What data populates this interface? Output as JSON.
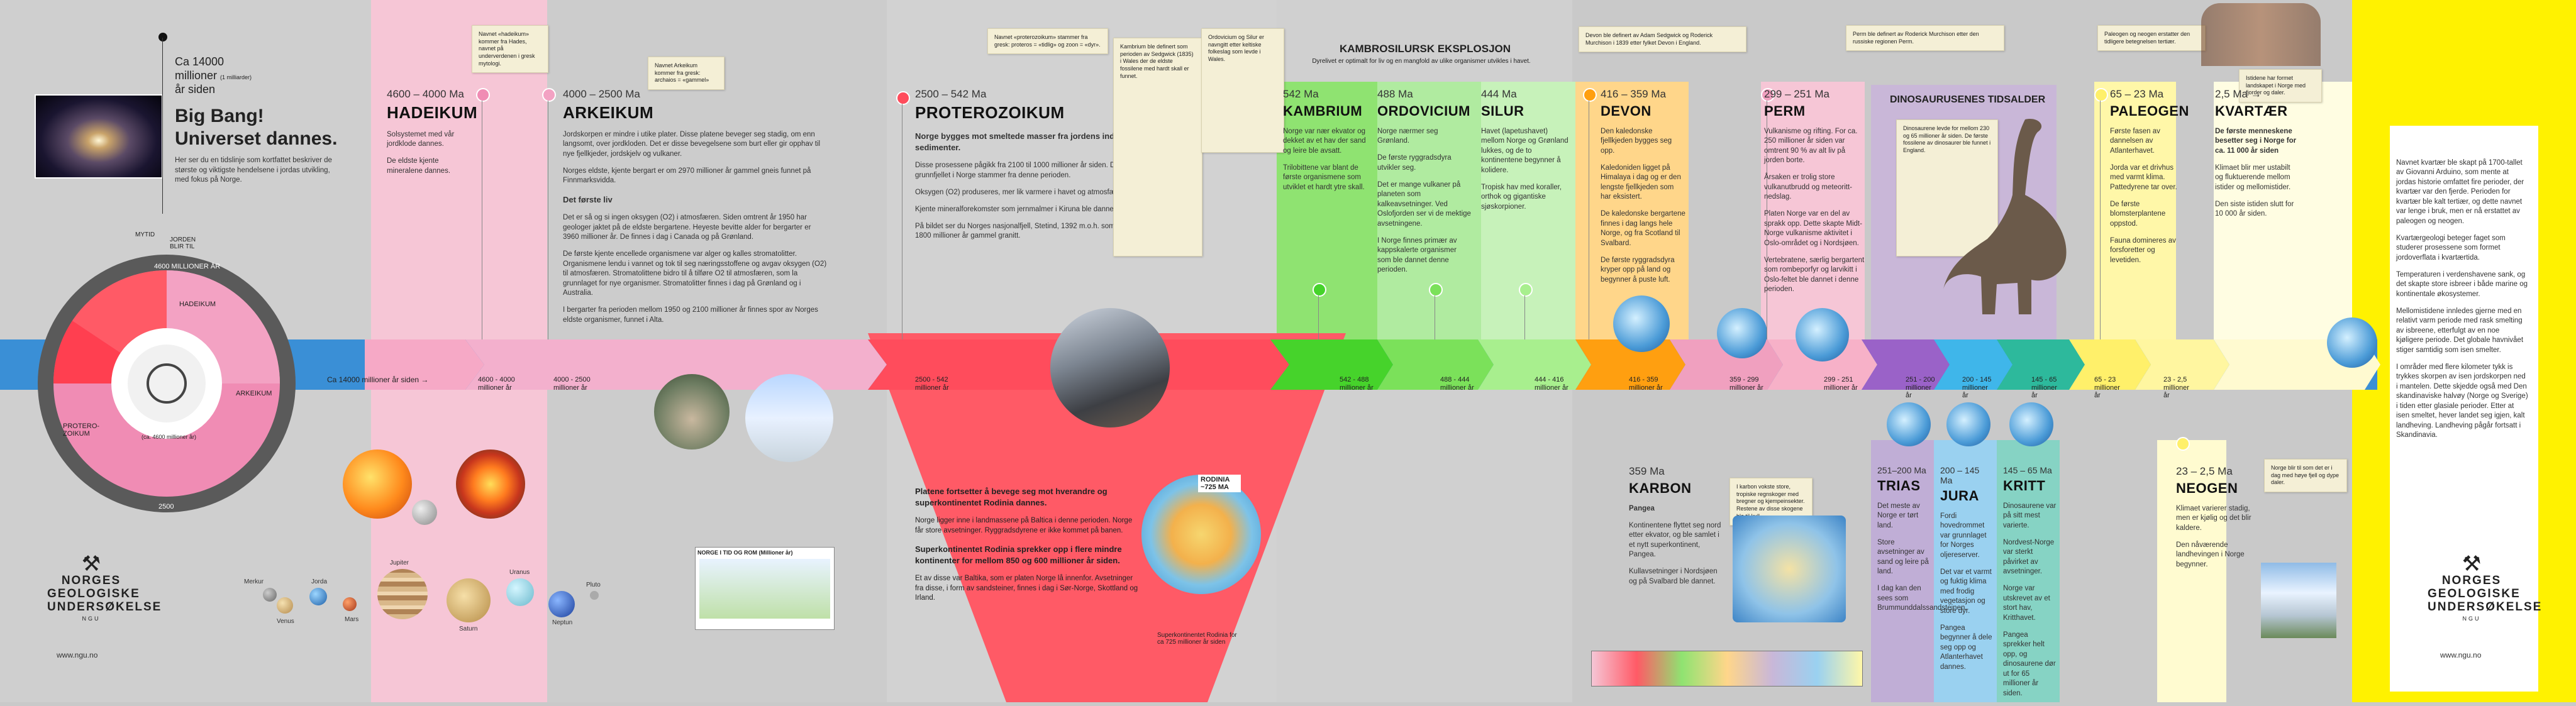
{
  "intro": {
    "ca": "Ca 14000",
    "millioner": "millioner",
    "millioner_note": "(1 milliarder)",
    "ar_siden": "år siden",
    "bigbang": "Big Bang!",
    "universet": "Universet dannes.",
    "desc": "Her ser du en tidslinje som kortfattet beskriver de største og viktigste hendelsene i jordas utvikling, med fokus på Norge.",
    "earth_label": "JORDEN BLIR TIL",
    "mytid": "MYTID"
  },
  "clock": {
    "hadeikum": "HADEIKUM",
    "arkeikum": "ARKEIKUM",
    "proterozoikum": "PROTERO-ZOIKUM",
    "top": "4600 MILLIONER ÅR",
    "bottom": "2500",
    "center": "(ca. 4600 millioner år)"
  },
  "hadeikum": {
    "ma": "4600 – 4000 Ma",
    "title": "HADEIKUM",
    "t1": "Solsystemet med vår jordklode dannes.",
    "t2": "De eldste kjente mineralene dannes.",
    "arrow": "4600 - 4000 millioner år",
    "note": "Navnet «hadeikum» kommer fra Hades, navnet på underverdenen i gresk mytologi."
  },
  "arkeikum": {
    "ma": "4000 – 2500 Ma",
    "title": "ARKEIKUM",
    "t1": "Jordskorpen er mindre i utike plater. Disse platene beveger seg stadig, om enn langsomt, over jordkloden. Det er disse bevegelsene som burt eller gir opphav til nye fjellkjeder, jordskjelv og vulkaner.",
    "t2": "Norges eldste, kjente bergart er om 2970 millioner år gammel gneis funnet på Finnmarksvidda.",
    "sub": "Det første liv",
    "t3": "Det er så og si ingen oksygen (O2) i atmosfæren. Siden omtrent år 1950 har geologer jaktet på de eldste bergartene. Heyeste bevitte alder for bergarter er 3960 millioner år. De finnes i dag i Canada og på Grønland.",
    "t4": "De første kjente encellede organismene var alger og kalles stromatolitter. Organismene lendu i vannet og tok til seg næringsstoffene og avgav oksygen (O2) til atmosfæren. Stromatolittene bidro til å tilføre O2 til atmosfæren, som la grunnlaget for nye organismer. Stromatolitter finnes i dag på Grønland og i Australia.",
    "t5": "I bergarter fra perioden mellom 1950 og 2100 millioner år finnes spor av Norges eldste organismer, funnet i Alta.",
    "arrow": "4000 - 2500 millioner år",
    "note": "Navnet Arkeikum kommer fra gresk: archaios = «gammel»"
  },
  "proterozoikum": {
    "ma": "2500 – 542 Ma",
    "title": "PROTEROZOIKUM",
    "sub": "Norge bygges mot smeltede masser fra jordens indre og sedimenter.",
    "t1": "Disse prosessene pågikk fra 2100 til 1000 millioner år siden. Det meste av grunnfjellet i Norge stammer fra denne perioden.",
    "t2": "Oksygen (O2) produseres, mer lik varmere i havet og atmosfæren.",
    "t3": "Kjente mineralforekomster som jernmalmer i Kiruna ble dannet.",
    "t4": "På bildet ser du Norges nasjonalfjell, Stetind, 1392 m.o.h. som består av ca. 1800 millioner år gammel granitt.",
    "arrow": "2500 - 542 millioner år",
    "note": "Navnet «proterozoikum» stammer fra gresk: proteros = «tidlig» og zoon = «dyr».",
    "lower_title": "Platene fortsetter å bevege seg mot hverandre og superkontinentet Rodinia dannes.",
    "lower_t1": "Norge ligger inne i landmassene på Baltica i denne perioden. Norge får store avsetninger. Ryggradsdyrene er ikke kommet på banen.",
    "lower_title2": "Superkontinentet Rodinia sprekker opp i flere mindre kontinenter for mellom 850 og 600 millioner år siden.",
    "lower_t2": "Et av disse var Baltika, som er platen Norge lå innenfor. Avsetninger fra disse, i form av sandsteiner, finnes i dag i Sør-Norge, Skottland og Irland.",
    "rodinia": "RODINIA ~725 MA",
    "rodinia_cap": "Superkontinentet Rodinia for ca 725 millioner år siden",
    "map_title": "NORGE I TID OG ROM (Millioner år)"
  },
  "kambro": {
    "title": "KAMBROSILURSK EKSPLOSJON",
    "sub": "Dyrelivet er optimalt for liv og en mangfold av ulike organismer utvikles i havet.",
    "left_note": "Kambrium ble definert som perioden av Sedgwick (1835) i Wales der de eldste fossilene med hardt skall er funnet.",
    "right_note": "Ordovicium og Silur er navngitt etter keltiske folkeslag som levde i Wales."
  },
  "kambrium": {
    "ma": "542 Ma",
    "title": "KAMBRIUM",
    "t1": "Norge var nær ekvator og dekket av et hav der sand og leire ble avsatt.",
    "t2": "Trilobittene var blant de første organismene som utviklet et hardt ytre skall.",
    "arrow": "542 - 488 millioner år"
  },
  "ordovicium": {
    "ma": "488 Ma",
    "title": "ORDOVICIUM",
    "t1": "Norge nærmer seg Grønland.",
    "t2": "De første ryggradsdyra utvikler seg.",
    "t3": "Det er mange vulkaner på planeten som kalkeavsetninger. Ved Oslofjorden ser vi de mektige avsetningene.",
    "t4": "I Norge finnes primær av kappskalerte organismer som ble dannet denne perioden.",
    "arrow": "488 - 444 millioner år"
  },
  "silur": {
    "ma": "444 Ma",
    "title": "SILUR",
    "t1": "Havet (lapetushavet) mellom Norge og Grønland lukkes, og de to kontinentene begynner å kolidere.",
    "t2": "Tropisk hav med koraller, orthok og gigantiske sjøskorpioner.",
    "arrow": "444 - 416 millioner år"
  },
  "devon": {
    "ma": "416 – 359 Ma",
    "title": "DEVON",
    "t1": "Den kaledonske fjellkjeden bygges seg opp.",
    "t2": "Kaledoniden ligget på Himalaya i dag og er den lengste fjellkjeden som har eksistert.",
    "t3": "De kaledonske bergartene finnes i dag langs hele Norge, og fra Scotland til Svalbard.",
    "t4": "De første ryggradsdyra kryper opp på land og begynner å puste luft.",
    "arrow": "416 - 359 millioner år",
    "note": "Devon ble definert av Adam Sedgwick og Roderick Murchison i 1839 etter fylket Devon i England."
  },
  "karbon": {
    "ma": "359 Ma",
    "title": "KARBON",
    "sub": "Pangea",
    "t1": "Kontinentene flyttet seg nord etter ekvator, og ble samlet i et nytt superkontinent, Pangea.",
    "t2": "Kullavsetninger i Nordsjøen og på Svalbard ble dannet.",
    "arrow": "359 - 299 millioner år",
    "note": "I karbon vokste store, tropiske regnskoger med bregner og kjempeinsekter. Restene av disse skogene ble til kull."
  },
  "perm": {
    "ma": "299 – 251 Ma",
    "title": "PERM",
    "t1": "Vulkanisme og rifting. For ca. 250 millioner år siden var omtrent 90 % av alt liv på jorden borte.",
    "t2": "Årsaken er trolig store vulkanutbrudd og meteoritt-nedslag.",
    "t3": "Platen Norge var en del av sprakk opp. Dette skapte Midt-Norge vulkanisme aktivitet i Oslo-området og i Nordsjøen.",
    "t4": "Vertebratene, særlig bergartent som rombeporfyr og larvikitt i Oslo-feltet ble dannet i denne perioden.",
    "arrow": "299 - 251 millioner år",
    "note": "Perm ble definert av Roderick Murchison etter den russiske regionen Perm."
  },
  "dino": {
    "title": "DINOSAURUSENES TIDSALDER",
    "note": "Dinosaurene levde for mellom 230 og 65 millioner år siden. De første fossilene av dinosaurer ble funnet i England."
  },
  "trias": {
    "ma": "251–200 Ma",
    "title": "TRIAS",
    "t1": "Det meste av Norge er tørt land.",
    "t2": "Store avsetninger av sand og leire på land.",
    "t3": "I dag kan den sees som Brummunddalssandsteinen.",
    "arrow": "251 - 200 millioner år"
  },
  "jura": {
    "ma": "200 – 145 Ma",
    "title": "JURA",
    "t1": "Fordi hovedrommet var grunnlaget for Norges oljereserver.",
    "t2": "Det var et varmt og fuktig klima med frodig vegetasjon og store dyr.",
    "t3": "Pangea begynner å dele seg opp og Atlanterhavet dannes.",
    "arrow": "200 - 145 millioner år"
  },
  "kritt": {
    "ma": "145 – 65 Ma",
    "title": "KRITT",
    "t1": "Dinosaurene var på sitt mest varierte.",
    "t2": "Nordvest-Norge var sterkt påvirket av avsetninger.",
    "t3": "Norge var utskrevet av et stort hav, Kritthavet.",
    "t4": "Pangea sprekker helt opp, og dinosaurene dør ut for 65 millioner år siden.",
    "arrow": "145 - 65 millioner år"
  },
  "paleogen": {
    "ma": "65 – 23 Ma",
    "title": "PALEOGEN",
    "t1": "Første fasen av dannelsen av Atlanterhavet.",
    "t2": "Jorda var et drivhus med varmt klima. Pattedyrene tar over.",
    "t3": "De første blomsterplantene oppstod.",
    "t4": "Fauna domineres av forsforetter og levetiden.",
    "arrow": "65 - 23 millioner år",
    "note": "Paleogen og neogen erstatter den tidligere betegnelsen tertiær."
  },
  "neogen": {
    "ma": "23 – 2,5 Ma",
    "title": "NEOGEN",
    "t1": "Klimaet varierer stadig, men er kjølig og det blir kaldere.",
    "t2": "Den nåværende landhevingen i Norge begynner.",
    "arrow": "23 - 2,5 millioner år",
    "note": "Norge blir til som det er i dag med høye fjell og dype daler."
  },
  "kvartaer": {
    "ma": "2,5 Ma →",
    "title": "KVARTÆR",
    "sub": "De første menneskene besetter seg i Norge for ca. 11 000 år siden",
    "t1": "Klimaet blir mer ustabilt og fluktuerende mellom istider og mellomistider.",
    "t2": "Den siste istiden slutt for 10 000 år siden.",
    "arrow": "2,5 millioner år - i dag",
    "note": "Istidene har formet landskapet i Norge med fjorder og daler."
  },
  "right_panel": {
    "p1": "Navnet kvartær ble skapt på 1700-tallet av Giovanni Arduino, som mente at jordas historie omfattet fire perioder, der kvartær var den fjerde. Perioden for kvartær ble kalt tertiær, og dette navnet var lenge i bruk, men er nå erstattet av paleogen og neogen.",
    "p2": "Kvartærgeologi beteger faget som studerer prosessene som formet jordoverflata i kvartærtida.",
    "p3": "Temperaturen i verdenshavene sank, og det skapte store isbreer i både marine og kontinentale økosystemer.",
    "p4": "Mellomistidene innledes gjerne med en relativt varm periode med rask smelting av isbreene, etterfulgt av en noe kjøligere periode. Det globale havnivået stiger samtidig som isen smelter.",
    "p5": "I områder med flere kilometer tykk is trykkes skorpen av isen jordskorpen ned i mantelen. Dette skjedde også med Den skandinaviske halvøy (Norge og Sverige) i tiden etter glasiale perioder. Etter at isen smeltet, hever landet seg igjen, kalt landheving. Landheving pågår fortsatt i Skandinavia."
  },
  "ngu": {
    "l1": "NORGES",
    "l2": "GEOLOGISKE",
    "l3": "UNDERSØKELSE",
    "l4": "NGU",
    "web": "www.ngu.no"
  },
  "timeline_start": "Ca 14000 millioner år siden  →",
  "planets": [
    "Merkur",
    "Venus",
    "Jorda",
    "Mars",
    "Jupiter",
    "Saturn",
    "Uranus",
    "Neptun",
    "Pluto"
  ]
}
